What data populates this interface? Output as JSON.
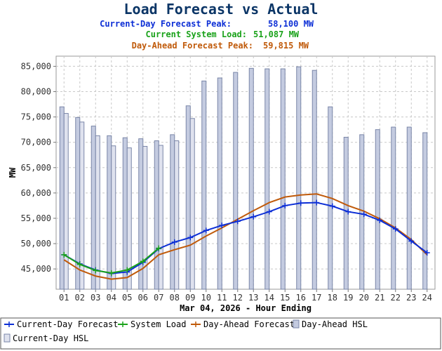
{
  "header": {
    "title": "Load Forecast vs Actual",
    "title_color": "#0b3566",
    "lines": [
      {
        "label": "Current-Day Forecast Peak:",
        "value": "58,100 MW",
        "color": "#0d2fd6"
      },
      {
        "label": "Current System Load:",
        "value": "51,087 MW",
        "color": "#1aa21a"
      },
      {
        "label": "Day-Ahead Forecast Peak:",
        "value": "59,815 MW",
        "color": "#c05a0a"
      }
    ]
  },
  "chart_data": {
    "type": "bar+line",
    "categories": [
      "01",
      "02",
      "03",
      "04",
      "05",
      "06",
      "07",
      "08",
      "09",
      "10",
      "11",
      "12",
      "13",
      "14",
      "15",
      "16",
      "17",
      "18",
      "19",
      "20",
      "21",
      "22",
      "23",
      "24"
    ],
    "xlabel": "Mar 04, 2026 - Hour Ending",
    "ylabel": "MW",
    "ylim": [
      41000,
      87000
    ],
    "yticks": [
      45000,
      50000,
      55000,
      60000,
      65000,
      70000,
      75000,
      80000,
      85000
    ],
    "ytick_labels": [
      "45,000",
      "50,000",
      "55,000",
      "60,000",
      "65,000",
      "70,000",
      "75,000",
      "80,000",
      "85,000"
    ],
    "grid": true,
    "legend_position": "bottom",
    "bar_series": [
      {
        "name": "Day-Ahead HSL",
        "color": "#c4cbe0",
        "stroke": "#7a86a8",
        "values": [
          77000,
          74900,
          73200,
          71300,
          70900,
          70700,
          70300,
          71500,
          77200,
          82100,
          82700,
          83800,
          84600,
          84500,
          84500,
          84900,
          84200,
          77000,
          71000,
          71500,
          72500,
          73000,
          73000,
          71900
        ]
      },
      {
        "name": "Current-Day HSL",
        "color": "#dfe2ee",
        "stroke": "#7a86a8",
        "values": [
          75700,
          74000,
          71300,
          69300,
          68900,
          69200,
          69400,
          70300,
          74700,
          null,
          null,
          null,
          null,
          null,
          null,
          null,
          null,
          null,
          null,
          null,
          null,
          null,
          null,
          null
        ]
      }
    ],
    "line_series": [
      {
        "name": "Current-Day Forecast",
        "color": "#0d2fd6",
        "marker": "plus",
        "values": [
          47800,
          46000,
          44800,
          44100,
          44400,
          46300,
          49000,
          50300,
          51200,
          52600,
          53600,
          54400,
          55300,
          56300,
          57500,
          58000,
          58100,
          57400,
          56300,
          55800,
          54600,
          52900,
          50500,
          48200
        ]
      },
      {
        "name": "System Load",
        "color": "#1aa21a",
        "marker": "plus",
        "values": [
          47800,
          45900,
          44700,
          44200,
          44800,
          46500,
          49100,
          null,
          null,
          null,
          null,
          null,
          null,
          null,
          null,
          null,
          null,
          null,
          null,
          null,
          null,
          null,
          null,
          null
        ]
      },
      {
        "name": "Day-Ahead Forecast",
        "color": "#c05a0a",
        "marker": "none",
        "values": [
          46800,
          44800,
          43600,
          43000,
          43300,
          45100,
          47800,
          48800,
          49700,
          51500,
          53100,
          54800,
          56500,
          58100,
          59200,
          59600,
          59800,
          58900,
          57500,
          56400,
          54900,
          53100,
          50800,
          47800
        ]
      }
    ],
    "legend": [
      {
        "name": "Current-Day Forecast",
        "kind": "line",
        "color": "#0d2fd6"
      },
      {
        "name": "System Load",
        "kind": "line",
        "color": "#1aa21a"
      },
      {
        "name": "Day-Ahead Forecast",
        "kind": "line",
        "color": "#c05a0a"
      },
      {
        "name": "Day-Ahead HSL",
        "kind": "bar",
        "color": "#c4cbe0"
      },
      {
        "name": "Current-Day HSL",
        "kind": "bar",
        "color": "#dfe2ee"
      }
    ]
  }
}
